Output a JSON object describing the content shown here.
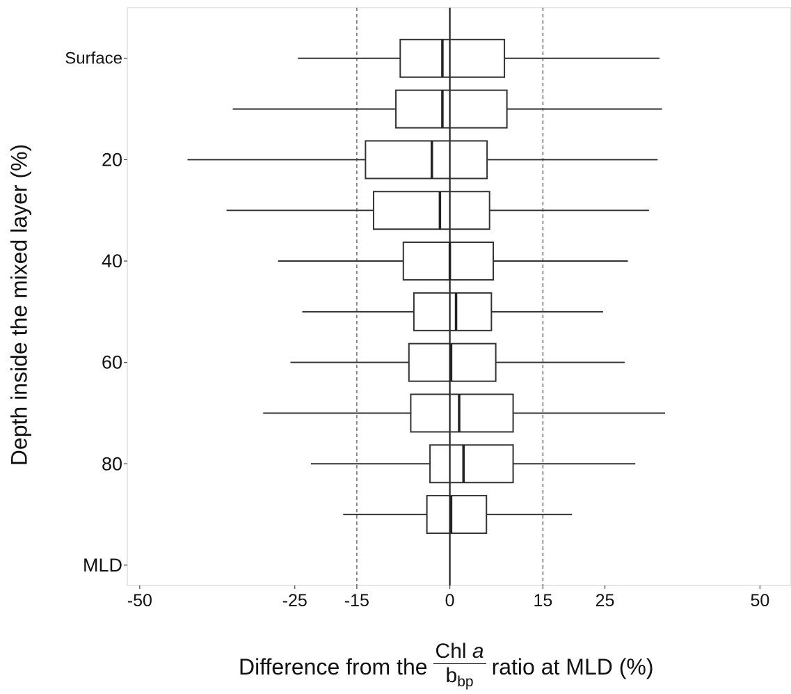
{
  "chart_data": {
    "type": "boxplot",
    "orientation": "horizontal",
    "xlabel": {
      "prefix": "Difference from the",
      "fraction_numerator_text": "Chl ",
      "fraction_numerator_italic": "a",
      "fraction_denominator_base": "b",
      "fraction_denominator_sub": "bp",
      "suffix": "ratio at MLD (%)"
    },
    "ylabel": "Depth inside the mixed layer (%)",
    "xlim": [
      -52,
      55
    ],
    "xticks": [
      {
        "value": -50,
        "label": "-50"
      },
      {
        "value": -25,
        "label": "-25"
      },
      {
        "value": -15,
        "label": "-15"
      },
      {
        "value": 0,
        "label": "0"
      },
      {
        "value": 15,
        "label": "15"
      },
      {
        "value": 25,
        "label": "25"
      },
      {
        "value": 50,
        "label": "50"
      }
    ],
    "ylim": [
      -10,
      104
    ],
    "y_reversed": true,
    "yticks": [
      {
        "value": 0,
        "label": "Surface"
      },
      {
        "value": 20,
        "label": "20"
      },
      {
        "value": 40,
        "label": "40"
      },
      {
        "value": 60,
        "label": "60"
      },
      {
        "value": 80,
        "label": "80"
      },
      {
        "value": 100,
        "label": "MLD"
      }
    ],
    "reference_lines": [
      {
        "x": 0,
        "style": "solid"
      },
      {
        "x": -15,
        "style": "dashed"
      },
      {
        "x": 15,
        "style": "dashed"
      }
    ],
    "grid": false,
    "boxes": [
      {
        "depth": 0,
        "whisker_low": -24.5,
        "q1": -8.0,
        "median": -1.2,
        "q3": 8.8,
        "whisker_high": 33.8
      },
      {
        "depth": 10,
        "whisker_low": -35.0,
        "q1": -8.7,
        "median": -1.2,
        "q3": 9.2,
        "whisker_high": 34.2
      },
      {
        "depth": 20,
        "whisker_low": -42.3,
        "q1": -13.6,
        "median": -2.9,
        "q3": 6.0,
        "whisker_high": 33.5
      },
      {
        "depth": 30,
        "whisker_low": -36.0,
        "q1": -12.3,
        "median": -1.6,
        "q3": 6.4,
        "whisker_high": 32.1
      },
      {
        "depth": 40,
        "whisker_low": -27.7,
        "q1": -7.5,
        "median": 0.0,
        "q3": 7.0,
        "whisker_high": 28.7
      },
      {
        "depth": 50,
        "whisker_low": -23.8,
        "q1": -5.8,
        "median": 1.0,
        "q3": 6.7,
        "whisker_high": 24.7
      },
      {
        "depth": 60,
        "whisker_low": -25.7,
        "q1": -6.6,
        "median": 0.2,
        "q3": 7.4,
        "whisker_high": 28.2
      },
      {
        "depth": 70,
        "whisker_low": -30.1,
        "q1": -6.3,
        "median": 1.5,
        "q3": 10.2,
        "whisker_high": 34.7
      },
      {
        "depth": 80,
        "whisker_low": -22.4,
        "q1": -3.2,
        "median": 2.2,
        "q3": 10.2,
        "whisker_high": 29.9
      },
      {
        "depth": 90,
        "whisker_low": -17.2,
        "q1": -3.7,
        "median": 0.2,
        "q3": 5.9,
        "whisker_high": 19.7
      }
    ]
  }
}
